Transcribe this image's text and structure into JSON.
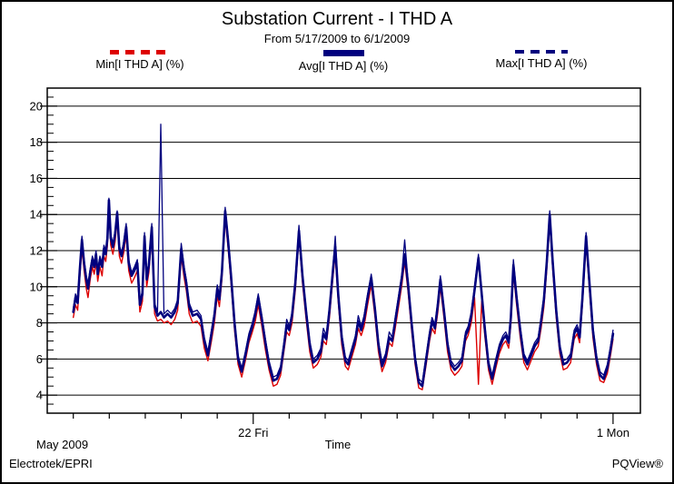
{
  "header": {
    "title": "Substation Current - I THD A",
    "subtitle": "From 5/17/2009 to 6/1/2009"
  },
  "legend": [
    {
      "label": "Min[I THD A] (%)",
      "style": "dashed",
      "color": "#dd0000"
    },
    {
      "label": "Avg[I THD A] (%)",
      "style": "solid",
      "color": "#00007e"
    },
    {
      "label": "Max[I THD A] (%)",
      "style": "dashed",
      "color": "#00007e"
    }
  ],
  "footer": {
    "left": "Electrotek/EPRI",
    "right": "PQView®"
  },
  "chart_data": {
    "type": "line",
    "title": "Substation Current - I THD A",
    "subtitle": "From 5/17/2009 to 6/1/2009",
    "xlabel": "Time",
    "x_period_label": "May 2009",
    "x_start_date": "5/17/2009",
    "x_end_date": "6/1/2009",
    "x_unit": "days since 5/17/2009 00:00",
    "x_days_total": 15,
    "x_major_ticks": [
      {
        "day": 5,
        "label": "22 Fri"
      },
      {
        "day": 15,
        "label": "1 Mon"
      }
    ],
    "ylim": [
      3,
      21
    ],
    "y_major_ticks": [
      4,
      6,
      8,
      10,
      12,
      14,
      16,
      18,
      20
    ],
    "y_minor_step": 0.5,
    "grid": "horizontal-major-only",
    "legend_position": "top",
    "x": [
      0.0,
      0.06,
      0.12,
      0.18,
      0.24,
      0.3,
      0.36,
      0.41,
      0.47,
      0.53,
      0.58,
      0.63,
      0.68,
      0.74,
      0.8,
      0.85,
      0.9,
      0.95,
      0.99,
      1.04,
      1.1,
      1.16,
      1.22,
      1.28,
      1.34,
      1.4,
      1.47,
      1.54,
      1.62,
      1.7,
      1.78,
      1.85,
      1.92,
      1.98,
      2.04,
      2.1,
      2.18,
      2.26,
      2.34,
      2.43,
      2.52,
      2.62,
      2.72,
      2.82,
      2.9,
      3.0,
      3.08,
      3.14,
      3.22,
      3.32,
      3.44,
      3.55,
      3.64,
      3.74,
      3.84,
      3.92,
      4.0,
      4.06,
      4.13,
      4.22,
      4.3,
      4.38,
      4.48,
      4.58,
      4.68,
      4.78,
      4.88,
      4.96,
      5.05,
      5.14,
      5.24,
      5.34,
      5.44,
      5.56,
      5.66,
      5.76,
      5.86,
      5.93,
      6.0,
      6.08,
      6.17,
      6.27,
      6.37,
      6.47,
      6.57,
      6.67,
      6.78,
      6.88,
      6.95,
      7.03,
      7.12,
      7.22,
      7.28,
      7.36,
      7.46,
      7.56,
      7.64,
      7.74,
      7.84,
      7.92,
      8.0,
      8.08,
      8.18,
      8.28,
      8.38,
      8.48,
      8.58,
      8.68,
      8.78,
      8.86,
      8.94,
      9.04,
      9.13,
      9.21,
      9.3,
      9.4,
      9.5,
      9.6,
      9.7,
      9.8,
      9.9,
      9.97,
      10.05,
      10.13,
      10.2,
      10.3,
      10.4,
      10.5,
      10.6,
      10.7,
      10.8,
      10.9,
      10.97,
      11.06,
      11.15,
      11.26,
      11.35,
      11.44,
      11.54,
      11.64,
      11.74,
      11.84,
      11.94,
      12.02,
      12.1,
      12.16,
      12.23,
      12.32,
      12.42,
      12.52,
      12.62,
      12.72,
      12.82,
      12.92,
      13.0,
      13.08,
      13.16,
      13.24,
      13.32,
      13.42,
      13.52,
      13.62,
      13.72,
      13.82,
      13.92,
      14.0,
      14.07,
      14.15,
      14.25,
      14.34,
      14.44,
      14.54,
      14.64,
      14.74,
      14.84,
      14.93,
      15.0
    ],
    "series": [
      {
        "name": "Min[I THD A] (%)",
        "color": "#dd0000",
        "line": "dash",
        "width": 1.4,
        "values": [
          8.3,
          9.0,
          8.7,
          10.5,
          12.1,
          10.9,
          9.9,
          9.4,
          10.4,
          11.1,
          10.7,
          11.4,
          10.3,
          11.1,
          10.6,
          11.7,
          11.4,
          12.3,
          14.4,
          12.3,
          11.8,
          12.5,
          13.7,
          11.7,
          11.3,
          11.9,
          12.9,
          10.9,
          10.2,
          10.5,
          10.9,
          8.6,
          9.2,
          12.4,
          10.0,
          10.8,
          12.9,
          8.5,
          8.1,
          8.2,
          8.0,
          8.1,
          7.9,
          8.2,
          8.7,
          11.7,
          10.5,
          9.8,
          8.5,
          8.0,
          8.1,
          7.8,
          6.6,
          5.9,
          7.0,
          8.0,
          9.5,
          8.9,
          10.4,
          13.8,
          12.2,
          10.3,
          7.6,
          5.7,
          5.0,
          5.9,
          6.9,
          7.4,
          8.0,
          9.0,
          7.8,
          6.5,
          5.4,
          4.5,
          4.6,
          5.1,
          6.5,
          7.5,
          7.3,
          8.0,
          9.8,
          12.8,
          10.2,
          8.2,
          6.4,
          5.5,
          5.7,
          6.1,
          7.0,
          6.8,
          8.3,
          10.6,
          11.8,
          9.2,
          6.8,
          5.6,
          5.4,
          6.1,
          6.8,
          7.7,
          7.3,
          7.8,
          9.0,
          10.1,
          8.4,
          6.4,
          5.3,
          5.8,
          6.9,
          6.7,
          7.6,
          8.9,
          10.1,
          11.4,
          9.8,
          7.6,
          5.7,
          4.4,
          4.3,
          5.6,
          7.0,
          7.7,
          7.4,
          8.6,
          10.0,
          8.3,
          6.4,
          5.4,
          5.1,
          5.3,
          5.6,
          7.0,
          7.3,
          8.0,
          9.4,
          4.6,
          9.2,
          7.2,
          5.4,
          4.6,
          5.5,
          6.3,
          6.8,
          7.0,
          6.6,
          7.9,
          10.8,
          9.0,
          7.2,
          5.8,
          5.4,
          5.9,
          6.4,
          6.7,
          7.7,
          8.9,
          11.0,
          13.6,
          11.1,
          8.3,
          6.3,
          5.4,
          5.5,
          5.8,
          7.1,
          7.4,
          6.9,
          9.0,
          12.4,
          9.9,
          7.2,
          5.7,
          4.8,
          4.7,
          5.2,
          6.2,
          7.1
        ]
      },
      {
        "name": "Avg[I THD A] (%)",
        "color": "#00007e",
        "line": "solid",
        "width": 2.6,
        "values": [
          8.6,
          9.4,
          9.1,
          10.9,
          12.6,
          11.3,
          10.4,
          9.9,
          10.8,
          11.5,
          11.1,
          11.8,
          10.7,
          11.5,
          11.1,
          12.1,
          11.8,
          12.7,
          14.8,
          12.7,
          12.2,
          12.9,
          14.1,
          12.1,
          11.7,
          12.3,
          13.3,
          11.3,
          10.6,
          10.9,
          11.3,
          9.0,
          9.6,
          12.8,
          10.4,
          11.2,
          13.3,
          8.9,
          8.4,
          8.6,
          8.3,
          8.5,
          8.3,
          8.6,
          9.1,
          12.1,
          10.9,
          10.2,
          8.9,
          8.4,
          8.5,
          8.2,
          7.0,
          6.2,
          7.4,
          8.4,
          9.9,
          9.3,
          10.8,
          14.2,
          12.6,
          10.7,
          8.0,
          6.0,
          5.3,
          6.2,
          7.2,
          7.7,
          8.4,
          9.4,
          8.2,
          6.9,
          5.7,
          4.8,
          4.9,
          5.4,
          6.8,
          7.9,
          7.6,
          8.4,
          10.2,
          13.1,
          10.6,
          8.6,
          6.8,
          5.8,
          6.0,
          6.4,
          7.4,
          7.1,
          8.7,
          11.0,
          12.2,
          9.6,
          7.2,
          5.9,
          5.7,
          6.4,
          7.1,
          8.1,
          7.6,
          8.2,
          9.4,
          10.5,
          8.8,
          6.8,
          5.6,
          6.1,
          7.2,
          7.0,
          8.0,
          9.3,
          10.5,
          11.8,
          10.2,
          8.0,
          6.0,
          4.7,
          4.5,
          5.9,
          7.3,
          8.1,
          7.7,
          9.0,
          10.4,
          8.7,
          6.8,
          5.7,
          5.4,
          5.6,
          5.9,
          7.3,
          7.6,
          8.4,
          9.8,
          11.6,
          9.6,
          7.6,
          5.7,
          4.9,
          5.8,
          6.6,
          7.1,
          7.3,
          6.9,
          8.3,
          11.2,
          9.4,
          7.6,
          6.1,
          5.7,
          6.2,
          6.7,
          7.0,
          8.1,
          9.3,
          11.4,
          14.0,
          11.5,
          8.7,
          6.6,
          5.7,
          5.8,
          6.1,
          7.4,
          7.7,
          7.2,
          9.4,
          12.8,
          10.3,
          7.6,
          6.0,
          5.1,
          4.9,
          5.5,
          6.5,
          7.4
        ]
      },
      {
        "name": "Max[I THD A] (%)",
        "color": "#00007e",
        "line": "dash",
        "width": 1.3,
        "values": [
          8.8,
          9.6,
          9.3,
          11.1,
          12.8,
          11.5,
          10.6,
          10.2,
          11.0,
          11.7,
          11.3,
          12.0,
          10.9,
          11.7,
          11.3,
          12.3,
          12.0,
          12.9,
          14.9,
          12.9,
          12.4,
          13.1,
          14.2,
          12.3,
          11.9,
          12.5,
          13.5,
          11.5,
          10.8,
          11.1,
          11.5,
          9.2,
          9.8,
          13.0,
          10.6,
          11.4,
          13.5,
          9.1,
          8.6,
          19.0,
          8.5,
          8.7,
          8.5,
          8.8,
          9.3,
          12.4,
          11.1,
          10.4,
          9.1,
          8.6,
          8.7,
          8.4,
          7.2,
          6.4,
          7.6,
          8.6,
          10.1,
          9.5,
          11.0,
          14.4,
          12.8,
          10.9,
          8.2,
          6.2,
          5.5,
          6.4,
          7.4,
          7.9,
          8.6,
          9.6,
          8.4,
          7.1,
          5.9,
          5.0,
          5.1,
          5.6,
          7.0,
          8.2,
          7.8,
          8.6,
          10.4,
          13.4,
          10.8,
          8.8,
          7.0,
          6.0,
          6.2,
          6.6,
          7.7,
          7.3,
          8.9,
          11.2,
          12.8,
          9.8,
          7.4,
          6.1,
          5.9,
          6.6,
          7.3,
          8.4,
          7.8,
          8.4,
          9.6,
          10.7,
          9.0,
          7.0,
          5.8,
          6.3,
          7.5,
          7.2,
          8.2,
          9.5,
          10.7,
          12.6,
          10.4,
          8.2,
          6.2,
          4.9,
          4.7,
          6.1,
          7.5,
          8.3,
          7.9,
          9.2,
          10.6,
          8.9,
          7.0,
          5.9,
          5.6,
          5.8,
          6.1,
          7.5,
          7.8,
          8.6,
          10.0,
          11.8,
          9.8,
          7.8,
          5.9,
          5.1,
          6.0,
          6.8,
          7.3,
          7.5,
          7.1,
          8.5,
          11.5,
          9.6,
          7.8,
          6.3,
          5.9,
          6.4,
          6.9,
          7.2,
          8.3,
          9.5,
          11.6,
          14.2,
          11.7,
          8.9,
          6.8,
          5.9,
          6.0,
          6.3,
          7.6,
          7.9,
          7.4,
          9.6,
          13.0,
          10.5,
          7.8,
          6.2,
          5.3,
          5.1,
          5.7,
          6.7,
          7.6
        ]
      }
    ]
  }
}
